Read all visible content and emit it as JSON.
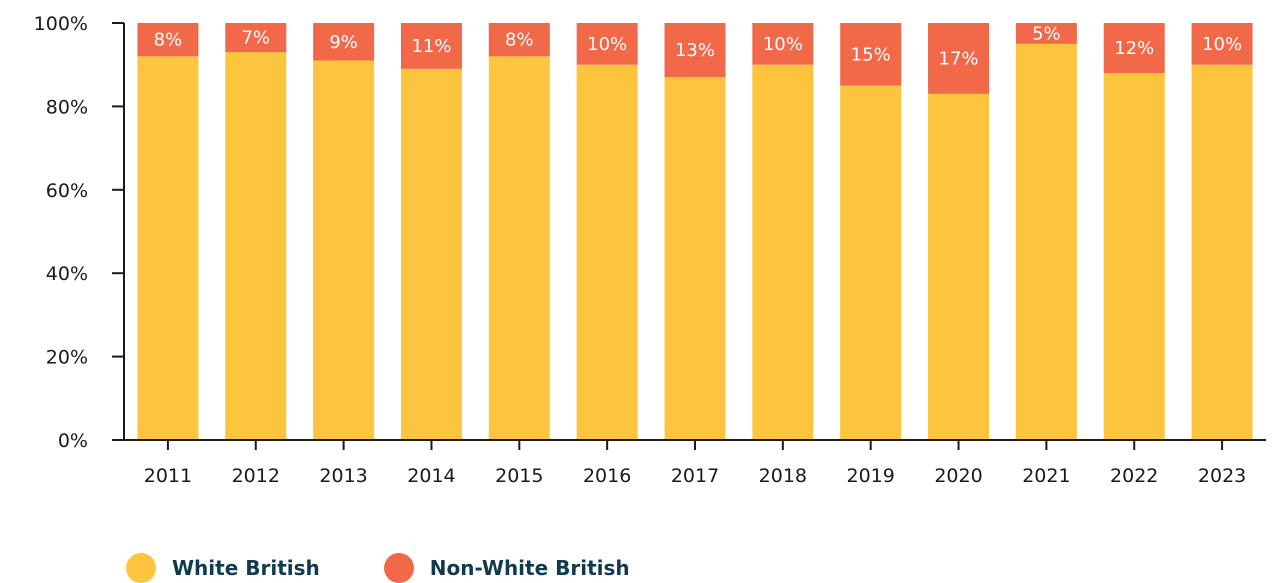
{
  "chart_data": {
    "type": "bar",
    "stacked": true,
    "categories": [
      "2011",
      "2012",
      "2013",
      "2014",
      "2015",
      "2016",
      "2017",
      "2018",
      "2019",
      "2020",
      "2021",
      "2022",
      "2023"
    ],
    "series": [
      {
        "name": "White British",
        "color": "#FDC53E",
        "values": [
          92,
          93,
          91,
          89,
          92,
          90,
          87,
          90,
          85,
          83,
          95,
          88,
          90
        ]
      },
      {
        "name": "Non-White British",
        "color": "#F2694A",
        "values": [
          8,
          7,
          9,
          11,
          8,
          10,
          13,
          10,
          15,
          17,
          5,
          12,
          10
        ],
        "labels": [
          "8%",
          "7%",
          "9%",
          "11%",
          "8%",
          "10%",
          "13%",
          "10%",
          "15%",
          "17%",
          "5%",
          "12%",
          "10%"
        ]
      }
    ],
    "ylim": [
      0,
      100
    ],
    "yticks": [
      0,
      20,
      40,
      60,
      80,
      100
    ],
    "ytick_labels": [
      "0%",
      "20%",
      "40%",
      "60%",
      "80%",
      "100%"
    ],
    "xlabel": "",
    "ylabel": "",
    "grid": false,
    "legend_position": "bottom-left"
  }
}
